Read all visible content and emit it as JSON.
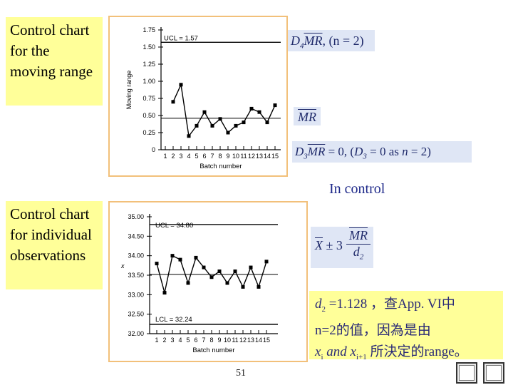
{
  "labels": {
    "moving_range": "Control chart for the moving range",
    "individual": "Control chart for individual observations",
    "in_control": "In control",
    "page": "51"
  },
  "formulas": {
    "mr_ucl_a": "D",
    "mr_ucl_b": "4",
    "mr_ucl_c": "MR",
    "mr_ucl_d": ", (n = 2)",
    "mr_center": "MR",
    "mr_lcl_a": "D",
    "mr_lcl_b": "3",
    "mr_lcl_c": "MR",
    "mr_lcl_d": " = 0, (",
    "mr_lcl_e": "D",
    "mr_lcl_f": "3",
    "mr_lcl_g": " = 0   as  ",
    "mr_lcl_h": "n",
    "mr_lcl_i": " = 2)",
    "ind_x": "X",
    "ind_pm": " ± 3",
    "ind_num": "MR",
    "ind_den": "d",
    "ind_den_sub": "2"
  },
  "note": {
    "line1_a": "d",
    "line1_b": "2",
    "line1_c": " =1.128",
    "line1_d": " ，查App. VI中",
    "line2": "n=2的值，因為是由",
    "line3_a": "x",
    "line3_b": "i",
    "line3_c": " and x",
    "line3_d": "i+1",
    "line3_e": "  所決定的range。"
  },
  "chart_data": [
    {
      "type": "line",
      "ylabel": "Moving range",
      "xlabel": "Batch number",
      "x": [
        1,
        2,
        3,
        4,
        5,
        6,
        7,
        8,
        9,
        10,
        11,
        12,
        13,
        14,
        15
      ],
      "values": [
        null,
        0.7,
        0.95,
        0.2,
        0.35,
        0.55,
        0.35,
        0.45,
        0.25,
        0.35,
        0.4,
        0.6,
        0.55,
        0.4,
        0.65
      ],
      "ylim": [
        0,
        1.75
      ],
      "yticks": [
        "0",
        "0.25",
        "0.50",
        "0.75",
        "1.00",
        "1.25",
        "1.50",
        "1.75"
      ],
      "xticks": [
        "1",
        "2",
        "3",
        "4",
        "5",
        "6",
        "7",
        "8",
        "9",
        "10",
        "11",
        "12",
        "13",
        "14",
        "15"
      ],
      "ucl": 1.57,
      "ucl_label": "UCL = 1.57",
      "center": 0.46
    },
    {
      "type": "line",
      "ylabel": "x",
      "xlabel": "Batch number",
      "x": [
        1,
        2,
        3,
        4,
        5,
        6,
        7,
        8,
        9,
        10,
        11,
        12,
        13,
        14,
        15
      ],
      "values": [
        33.8,
        33.05,
        34.0,
        33.9,
        33.3,
        33.95,
        33.7,
        33.45,
        33.6,
        33.3,
        33.6,
        33.2,
        33.7,
        33.2,
        33.85
      ],
      "ylim": [
        32.0,
        35.0
      ],
      "yticks": [
        "32.00",
        "32.50",
        "33.00",
        "33.50",
        "34.00",
        "34.50",
        "35.00"
      ],
      "xticks": [
        "1",
        "2",
        "3",
        "4",
        "5",
        "6",
        "7",
        "8",
        "9",
        "10",
        "11",
        "12",
        "13",
        "14",
        "15"
      ],
      "ucl": 34.8,
      "ucl_label": "UCL = 34.80",
      "lcl": 32.24,
      "lcl_label": "LCL = 32.24",
      "center": 33.52
    }
  ]
}
